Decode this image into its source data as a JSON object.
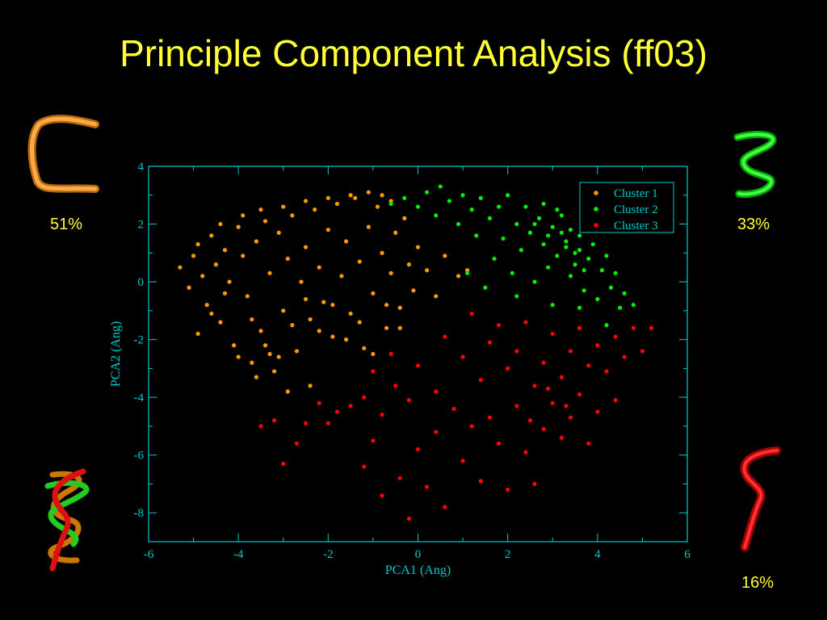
{
  "title": "Principle Component Analysis (ff03)",
  "populations": [
    {
      "cluster": "Cluster 1",
      "percent": "51%",
      "color": "#ff9900"
    },
    {
      "cluster": "Cluster 2",
      "percent": "33%",
      "color": "#00ee00"
    },
    {
      "cluster": "Cluster 3",
      "percent": "16%",
      "color": "#ff0000"
    }
  ],
  "chart_data": {
    "type": "scatter",
    "xlabel": "PCA1 (Ang)",
    "ylabel": "PCA2 (Ang)",
    "xlim": [
      -6,
      6
    ],
    "ylim": [
      -9,
      4
    ],
    "xticks": [
      -6,
      -4,
      -2,
      0,
      2,
      4,
      6
    ],
    "yticks": [
      -8,
      -6,
      -4,
      -2,
      0,
      2,
      4
    ],
    "grid": false,
    "legend_position": "top-right",
    "axis_color": "#00cccc",
    "series": [
      {
        "name": "Cluster 1",
        "color": "#ff9900",
        "points": [
          [
            -5.3,
            0.5
          ],
          [
            -5.1,
            -0.2
          ],
          [
            -5.0,
            0.9
          ],
          [
            -4.9,
            1.3
          ],
          [
            -4.8,
            0.2
          ],
          [
            -4.7,
            -0.8
          ],
          [
            -4.6,
            1.6
          ],
          [
            -4.5,
            0.6
          ],
          [
            -4.4,
            -1.4
          ],
          [
            -4.3,
            1.1
          ],
          [
            -4.2,
            0.0
          ],
          [
            -4.1,
            -2.2
          ],
          [
            -4.0,
            1.9
          ],
          [
            -3.9,
            0.9
          ],
          [
            -3.8,
            -0.5
          ],
          [
            -3.7,
            -2.8
          ],
          [
            -3.6,
            1.4
          ],
          [
            -3.5,
            -1.7
          ],
          [
            -3.4,
            2.1
          ],
          [
            -3.3,
            0.3
          ],
          [
            -3.2,
            -3.1
          ],
          [
            -3.1,
            1.7
          ],
          [
            -3.0,
            -1.0
          ],
          [
            -2.9,
            0.8
          ],
          [
            -2.8,
            2.3
          ],
          [
            -2.7,
            -2.4
          ],
          [
            -2.6,
            0.0
          ],
          [
            -2.5,
            1.2
          ],
          [
            -2.4,
            -1.3
          ],
          [
            -2.3,
            2.5
          ],
          [
            -2.2,
            0.5
          ],
          [
            -2.1,
            -0.7
          ],
          [
            -2.0,
            1.8
          ],
          [
            -1.9,
            -1.9
          ],
          [
            -1.8,
            2.7
          ],
          [
            -1.7,
            0.2
          ],
          [
            -1.6,
            1.4
          ],
          [
            -1.5,
            -1.1
          ],
          [
            -1.4,
            2.9
          ],
          [
            -1.3,
            0.7
          ],
          [
            -1.2,
            -2.3
          ],
          [
            -1.1,
            1.9
          ],
          [
            -1.0,
            -0.4
          ],
          [
            -0.9,
            2.6
          ],
          [
            -0.8,
            1.0
          ],
          [
            -0.7,
            -1.6
          ],
          [
            -0.6,
            0.3
          ],
          [
            -0.5,
            1.7
          ],
          [
            -0.4,
            -0.9
          ],
          [
            -0.3,
            2.2
          ],
          [
            -0.2,
            0.6
          ],
          [
            -0.1,
            -0.3
          ],
          [
            0.0,
            1.2
          ],
          [
            0.2,
            0.4
          ],
          [
            0.4,
            -0.5
          ],
          [
            0.6,
            0.9
          ],
          [
            0.9,
            0.2
          ],
          [
            1.1,
            0.4
          ],
          [
            -4.9,
            -1.8
          ],
          [
            -4.6,
            -1.1
          ],
          [
            -4.3,
            -0.4
          ],
          [
            -4.0,
            -2.6
          ],
          [
            -3.7,
            -1.3
          ],
          [
            -3.4,
            -2.2
          ],
          [
            -3.1,
            -2.6
          ],
          [
            -2.8,
            -1.5
          ],
          [
            -2.5,
            -0.6
          ],
          [
            -2.2,
            -1.7
          ],
          [
            -1.9,
            -0.8
          ],
          [
            -1.6,
            -2.0
          ],
          [
            -1.3,
            -1.4
          ],
          [
            -1.0,
            -2.5
          ],
          [
            -0.7,
            -0.8
          ],
          [
            -0.4,
            -1.6
          ],
          [
            -3.6,
            -3.3
          ],
          [
            -3.3,
            -2.5
          ],
          [
            -2.4,
            -3.6
          ],
          [
            -2.9,
            -3.8
          ],
          [
            -4.4,
            2.0
          ],
          [
            -3.9,
            2.3
          ],
          [
            -3.5,
            2.5
          ],
          [
            -3.0,
            2.6
          ],
          [
            -2.5,
            2.8
          ],
          [
            -2.0,
            2.9
          ],
          [
            -1.5,
            3.0
          ],
          [
            -1.1,
            3.1
          ],
          [
            -0.8,
            3.0
          ],
          [
            -0.6,
            2.8
          ]
        ]
      },
      {
        "name": "Cluster 2",
        "color": "#00ee00",
        "points": [
          [
            -0.6,
            2.7
          ],
          [
            -0.3,
            2.9
          ],
          [
            0.0,
            2.6
          ],
          [
            0.2,
            3.1
          ],
          [
            0.4,
            2.3
          ],
          [
            0.5,
            3.3
          ],
          [
            0.7,
            2.8
          ],
          [
            0.9,
            2.0
          ],
          [
            1.0,
            3.0
          ],
          [
            1.2,
            2.5
          ],
          [
            1.3,
            1.6
          ],
          [
            1.4,
            2.9
          ],
          [
            1.6,
            2.2
          ],
          [
            1.7,
            0.8
          ],
          [
            1.8,
            2.6
          ],
          [
            1.9,
            1.5
          ],
          [
            2.0,
            3.0
          ],
          [
            2.1,
            0.3
          ],
          [
            2.2,
            2.0
          ],
          [
            2.3,
            1.1
          ],
          [
            2.4,
            2.6
          ],
          [
            2.5,
            1.7
          ],
          [
            2.6,
            0.0
          ],
          [
            2.7,
            2.2
          ],
          [
            2.8,
            1.3
          ],
          [
            2.9,
            0.5
          ],
          [
            3.0,
            1.9
          ],
          [
            3.1,
            0.9
          ],
          [
            3.2,
            2.3
          ],
          [
            3.3,
            1.4
          ],
          [
            3.4,
            0.2
          ],
          [
            3.5,
            1.0
          ],
          [
            3.6,
            1.6
          ],
          [
            3.7,
            -0.3
          ],
          [
            3.8,
            0.8
          ],
          [
            3.9,
            1.3
          ],
          [
            4.0,
            -0.6
          ],
          [
            4.1,
            0.4
          ],
          [
            4.2,
            0.9
          ],
          [
            4.3,
            -0.2
          ],
          [
            4.4,
            0.3
          ],
          [
            4.5,
            -0.9
          ],
          [
            4.6,
            -0.4
          ],
          [
            4.8,
            -0.8
          ],
          [
            1.1,
            0.3
          ],
          [
            1.5,
            -0.2
          ],
          [
            2.2,
            -0.5
          ],
          [
            3.0,
            -0.8
          ],
          [
            3.6,
            -0.9
          ],
          [
            4.2,
            -1.5
          ],
          [
            2.8,
            2.7
          ],
          [
            3.1,
            2.5
          ],
          [
            3.4,
            1.8
          ],
          [
            3.6,
            1.1
          ],
          [
            3.3,
            1.2
          ],
          [
            3.5,
            0.6
          ],
          [
            2.6,
            2.0
          ],
          [
            2.9,
            1.6
          ],
          [
            3.2,
            1.7
          ],
          [
            3.7,
            0.4
          ]
        ]
      },
      {
        "name": "Cluster 3",
        "color": "#ff0000",
        "points": [
          [
            -3.5,
            -5.0
          ],
          [
            -3.2,
            -4.8
          ],
          [
            -3.0,
            -6.3
          ],
          [
            -2.7,
            -5.6
          ],
          [
            -2.5,
            -4.9
          ],
          [
            -2.2,
            -4.2
          ],
          [
            -2.0,
            -4.9
          ],
          [
            -1.8,
            -4.5
          ],
          [
            -1.5,
            -4.3
          ],
          [
            -1.2,
            -4.0
          ],
          [
            -1.2,
            -6.4
          ],
          [
            -1.0,
            -3.1
          ],
          [
            -1.0,
            -5.5
          ],
          [
            -0.8,
            -4.6
          ],
          [
            -0.8,
            -7.4
          ],
          [
            -0.6,
            -2.5
          ],
          [
            -0.5,
            -3.6
          ],
          [
            -0.4,
            -6.8
          ],
          [
            -0.2,
            -4.1
          ],
          [
            -0.2,
            -8.2
          ],
          [
            0.0,
            -2.9
          ],
          [
            0.0,
            -5.8
          ],
          [
            0.2,
            -7.1
          ],
          [
            0.4,
            -3.8
          ],
          [
            0.4,
            -5.2
          ],
          [
            0.6,
            -1.9
          ],
          [
            0.6,
            -7.8
          ],
          [
            0.8,
            -4.4
          ],
          [
            1.0,
            -2.6
          ],
          [
            1.0,
            -6.2
          ],
          [
            1.2,
            -1.1
          ],
          [
            1.2,
            -5.0
          ],
          [
            1.4,
            -3.4
          ],
          [
            1.4,
            -6.9
          ],
          [
            1.6,
            -2.1
          ],
          [
            1.6,
            -4.7
          ],
          [
            1.8,
            -1.5
          ],
          [
            1.8,
            -5.6
          ],
          [
            2.0,
            -3.0
          ],
          [
            2.0,
            -7.2
          ],
          [
            2.2,
            -2.4
          ],
          [
            2.2,
            -4.3
          ],
          [
            2.4,
            -1.4
          ],
          [
            2.4,
            -5.9
          ],
          [
            2.6,
            -3.6
          ],
          [
            2.6,
            -7.0
          ],
          [
            2.8,
            -2.8
          ],
          [
            2.8,
            -5.1
          ],
          [
            3.0,
            -1.8
          ],
          [
            3.0,
            -4.2
          ],
          [
            3.2,
            -3.3
          ],
          [
            3.2,
            -5.4
          ],
          [
            3.4,
            -2.4
          ],
          [
            3.4,
            -4.7
          ],
          [
            3.6,
            -1.6
          ],
          [
            3.6,
            -3.9
          ],
          [
            3.8,
            -2.9
          ],
          [
            3.8,
            -5.6
          ],
          [
            4.0,
            -2.2
          ],
          [
            4.0,
            -4.5
          ],
          [
            4.2,
            -3.1
          ],
          [
            4.4,
            -1.9
          ],
          [
            4.4,
            -4.1
          ],
          [
            4.6,
            -2.6
          ],
          [
            4.8,
            -1.6
          ],
          [
            5.0,
            -2.4
          ],
          [
            5.2,
            -1.6
          ],
          [
            2.9,
            -3.7
          ],
          [
            3.3,
            -4.3
          ],
          [
            2.5,
            -4.8
          ]
        ]
      }
    ]
  }
}
